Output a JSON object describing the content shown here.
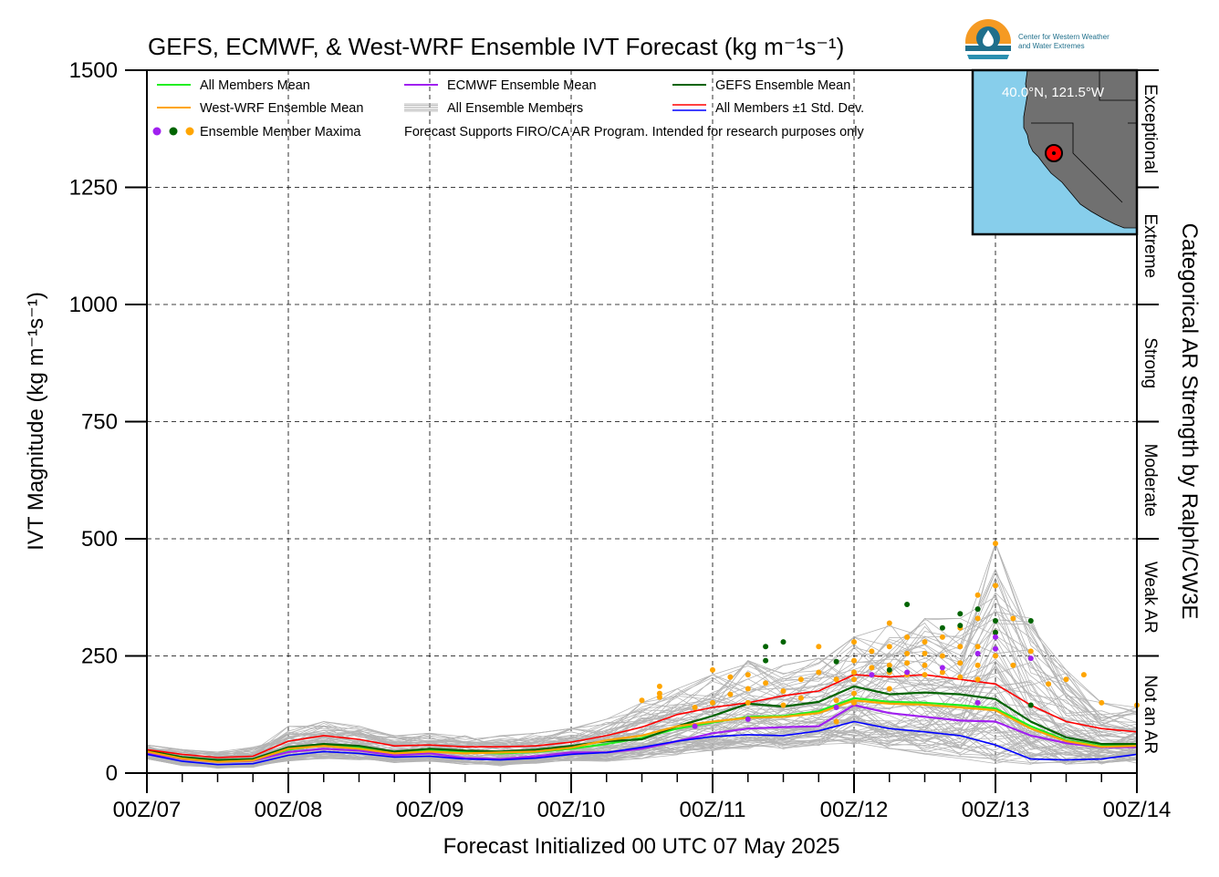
{
  "chart_data": {
    "type": "line",
    "title": "GEFS, ECMWF, & West-WRF Ensemble IVT Forecast (kg m⁻¹s⁻¹)",
    "xlabel": "Forecast Initialized 00 UTC 07 May 2025",
    "ylabel": "IVT Magnitude (kg m⁻¹s⁻¹)",
    "y2label": "Categorical AR Strength by Ralph/CW3E",
    "xlim": [
      0,
      168
    ],
    "ylim": [
      0,
      1500
    ],
    "x_tick_labels": [
      "00Z/07",
      "00Z/08",
      "00Z/09",
      "00Z/10",
      "00Z/11",
      "00Z/12",
      "00Z/13",
      "00Z/14"
    ],
    "x_tick_hours": [
      0,
      24,
      48,
      72,
      96,
      120,
      144,
      168
    ],
    "y_ticks": [
      0,
      250,
      500,
      750,
      1000,
      1250,
      1500
    ],
    "categories_right": [
      {
        "label": "Not an AR",
        "range": [
          0,
          250
        ]
      },
      {
        "label": "Weak AR",
        "range": [
          250,
          500
        ]
      },
      {
        "label": "Moderate",
        "range": [
          500,
          750
        ]
      },
      {
        "label": "Strong",
        "range": [
          750,
          1000
        ]
      },
      {
        "label": "Extreme",
        "range": [
          1000,
          1250
        ]
      },
      {
        "label": "Exceptional",
        "range": [
          1250,
          1500
        ]
      }
    ],
    "grid": true,
    "legend_placement": "top-left",
    "legend": [
      {
        "label": "All Members Mean",
        "color": "#22ee22",
        "kind": "line"
      },
      {
        "label": "ECMWF Ensemble Mean",
        "color": "#a020f0",
        "kind": "line"
      },
      {
        "label": "GEFS Ensemble Mean",
        "color": "#006400",
        "kind": "line"
      },
      {
        "label": "West-WRF Ensemble Mean",
        "color": "#ffa500",
        "kind": "line"
      },
      {
        "label": "All Ensemble Members",
        "color": "#aaaaaa",
        "kind": "multiline"
      },
      {
        "label": "All Members ±1 Std. Dev.",
        "color": "#ff0000",
        "color2": "#0000ff",
        "kind": "dualline"
      },
      {
        "label": "Ensemble Member Maxima",
        "colors": [
          "#a020f0",
          "#006400",
          "#ffa500"
        ],
        "kind": "dots"
      }
    ],
    "note": "Forecast Supports FIRO/CA AR Program. Intended for research purposes only",
    "x": [
      0,
      6,
      12,
      18,
      24,
      30,
      36,
      42,
      48,
      54,
      60,
      66,
      72,
      78,
      84,
      90,
      96,
      102,
      108,
      114,
      120,
      126,
      132,
      138,
      144,
      150,
      156,
      162,
      168
    ],
    "series": [
      {
        "name": "All Members Mean",
        "color": "#22ee22",
        "values": [
          45,
          32,
          25,
          28,
          50,
          60,
          55,
          45,
          48,
          44,
          42,
          45,
          52,
          62,
          75,
          95,
          108,
          120,
          122,
          132,
          160,
          152,
          150,
          145,
          138,
          100,
          70,
          58,
          60
        ]
      },
      {
        "name": "ECMWF Ensemble Mean",
        "color": "#a020f0",
        "values": [
          43,
          30,
          24,
          26,
          45,
          52,
          48,
          38,
          42,
          32,
          30,
          36,
          44,
          44,
          52,
          68,
          85,
          95,
          98,
          100,
          145,
          128,
          120,
          112,
          110,
          80,
          64,
          55,
          55
        ]
      },
      {
        "name": "GEFS Ensemble Mean",
        "color": "#006400",
        "values": [
          48,
          34,
          28,
          30,
          55,
          62,
          58,
          46,
          52,
          48,
          46,
          50,
          58,
          68,
          72,
          100,
          122,
          148,
          142,
          152,
          185,
          168,
          172,
          168,
          158,
          110,
          76,
          62,
          62
        ]
      },
      {
        "name": "West-WRF Ensemble Mean",
        "color": "#ffa500",
        "values": [
          46,
          31,
          24,
          27,
          52,
          58,
          52,
          42,
          46,
          42,
          44,
          46,
          54,
          70,
          80,
          100,
          110,
          118,
          120,
          128,
          155,
          148,
          146,
          140,
          134,
          95,
          68,
          56,
          58
        ]
      },
      {
        "name": "All Members +1 Std. Dev.",
        "color": "#ff0000",
        "values": [
          50,
          40,
          33,
          36,
          68,
          80,
          72,
          58,
          60,
          56,
          56,
          58,
          66,
          80,
          98,
          125,
          140,
          150,
          165,
          175,
          210,
          205,
          210,
          200,
          190,
          145,
          110,
          95,
          88
        ]
      },
      {
        "name": "All Members -1 Std. Dev.",
        "color": "#0000ff",
        "values": [
          40,
          25,
          18,
          20,
          38,
          46,
          42,
          34,
          36,
          30,
          28,
          32,
          40,
          44,
          55,
          68,
          78,
          82,
          80,
          90,
          110,
          95,
          88,
          80,
          60,
          30,
          28,
          30,
          40
        ]
      }
    ],
    "member_band": {
      "x": [
        0,
        6,
        12,
        18,
        24,
        30,
        36,
        42,
        48,
        54,
        60,
        66,
        72,
        78,
        84,
        90,
        96,
        102,
        108,
        114,
        120,
        126,
        132,
        138,
        144,
        150,
        156,
        162,
        168
      ],
      "low": [
        30,
        15,
        10,
        12,
        25,
        30,
        28,
        22,
        24,
        18,
        15,
        20,
        25,
        25,
        30,
        38,
        45,
        50,
        48,
        55,
        60,
        50,
        40,
        30,
        20,
        15,
        15,
        18,
        20
      ],
      "high": [
        60,
        50,
        45,
        55,
        100,
        110,
        100,
        80,
        85,
        80,
        80,
        85,
        95,
        115,
        150,
        180,
        210,
        240,
        230,
        245,
        290,
        320,
        330,
        330,
        490,
        330,
        220,
        150,
        140
      ],
      "count": 80
    },
    "maxima": [
      {
        "member": "West-WRF",
        "color": "#ffa500",
        "points": [
          [
            84,
            155
          ],
          [
            87,
            185
          ],
          [
            87,
            170
          ],
          [
            87,
            162
          ],
          [
            93,
            140
          ],
          [
            96,
            150
          ],
          [
            96,
            220
          ],
          [
            99,
            205
          ],
          [
            99,
            168
          ],
          [
            102,
            210
          ],
          [
            102,
            180
          ],
          [
            102,
            150
          ],
          [
            105,
            192
          ],
          [
            108,
            175
          ],
          [
            108,
            145
          ],
          [
            111,
            200
          ],
          [
            111,
            160
          ],
          [
            114,
            270
          ],
          [
            114,
            215
          ],
          [
            117,
            110
          ],
          [
            117,
            155
          ],
          [
            117,
            200
          ],
          [
            120,
            280
          ],
          [
            120,
            240
          ],
          [
            120,
            215
          ],
          [
            120,
            200
          ],
          [
            120,
            170
          ],
          [
            120,
            150
          ],
          [
            123,
            260
          ],
          [
            123,
            225
          ],
          [
            126,
            320
          ],
          [
            126,
            270
          ],
          [
            126,
            230
          ],
          [
            126,
            215
          ],
          [
            126,
            180
          ],
          [
            129,
            290
          ],
          [
            129,
            255
          ],
          [
            129,
            235
          ],
          [
            129,
            210
          ],
          [
            132,
            280
          ],
          [
            132,
            255
          ],
          [
            132,
            230
          ],
          [
            132,
            210
          ],
          [
            135,
            290
          ],
          [
            135,
            250
          ],
          [
            135,
            215
          ],
          [
            138,
            310
          ],
          [
            138,
            270
          ],
          [
            138,
            235
          ],
          [
            138,
            205
          ],
          [
            141,
            380
          ],
          [
            141,
            330
          ],
          [
            141,
            270
          ],
          [
            141,
            230
          ],
          [
            141,
            200
          ],
          [
            144,
            490
          ],
          [
            144,
            400
          ],
          [
            144,
            300
          ],
          [
            144,
            250
          ],
          [
            147,
            330
          ],
          [
            147,
            230
          ],
          [
            150,
            260
          ],
          [
            153,
            190
          ],
          [
            156,
            200
          ],
          [
            159,
            210
          ],
          [
            162,
            150
          ],
          [
            168,
            145
          ]
        ]
      },
      {
        "member": "GEFS",
        "color": "#006400",
        "points": [
          [
            105,
            270
          ],
          [
            105,
            240
          ],
          [
            108,
            280
          ],
          [
            117,
            238
          ],
          [
            126,
            220
          ],
          [
            129,
            360
          ],
          [
            135,
            310
          ],
          [
            138,
            340
          ],
          [
            138,
            315
          ],
          [
            141,
            350
          ],
          [
            144,
            325
          ],
          [
            144,
            300
          ],
          [
            150,
            325
          ],
          [
            150,
            145
          ]
        ]
      },
      {
        "member": "ECMWF",
        "color": "#a020f0",
        "points": [
          [
            93,
            100
          ],
          [
            102,
            115
          ],
          [
            117,
            140
          ],
          [
            123,
            210
          ],
          [
            129,
            215
          ],
          [
            135,
            225
          ],
          [
            141,
            255
          ],
          [
            141,
            150
          ],
          [
            144,
            290
          ],
          [
            144,
            265
          ],
          [
            150,
            245
          ]
        ]
      }
    ]
  },
  "logo": {
    "org_name_line1": "Center for Western Weather",
    "org_name_line2": "and Water Extremes"
  },
  "inset_map": {
    "coord_label": "40.0°N, 121.5°W",
    "ocean_color": "#87ceeb",
    "land_color": "#707070",
    "marker_color": "#ff0000"
  }
}
